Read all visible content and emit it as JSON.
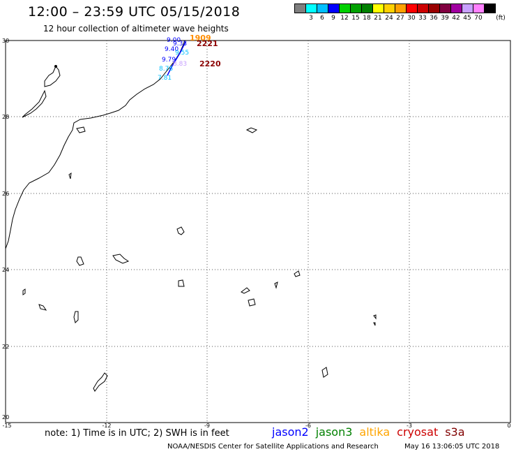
{
  "title": "12:00 – 23:59 UTC 05/15/2018",
  "subtitle": "12 hour collection of altimeter wave heights",
  "legend": {
    "colors": [
      "#7f7f7f",
      "#00ffff",
      "#00bfff",
      "#0000ff",
      "#00d000",
      "#00a000",
      "#008000",
      "#ffff00",
      "#ffd000",
      "#ffa000",
      "#ff0000",
      "#cc0000",
      "#990000",
      "#800040",
      "#a000a0",
      "#c8a0ff",
      "#ff80ff",
      "#000000"
    ],
    "labels": [
      "3",
      "6",
      "9",
      "12",
      "15",
      "18",
      "21",
      "24",
      "27",
      "30",
      "33",
      "36",
      "39",
      "42",
      "45",
      "70"
    ],
    "unit": "(ft)"
  },
  "map": {
    "lat_ticks": [
      "30",
      "28",
      "26",
      "24",
      "22",
      "20"
    ],
    "lon_ticks": [
      "-15",
      "-12",
      "-9",
      "-6",
      "-3",
      "0"
    ]
  },
  "wave_labels": [
    {
      "text": "9.00",
      "color": "#0000ff"
    },
    {
      "text": "9.33",
      "color": "#0000ff"
    },
    {
      "text": "9.40",
      "color": "#0000ff"
    },
    {
      "text": "9.55",
      "color": "#00bfff"
    },
    {
      "text": "9.79",
      "color": "#0000ff"
    },
    {
      "text": "8.83",
      "color": "#c8a0ff"
    },
    {
      "text": "8.76",
      "color": "#00bfff"
    },
    {
      "text": "7.81",
      "color": "#00bfff"
    }
  ],
  "pass_labels": [
    {
      "text": "1909",
      "color": "#ff8c00"
    },
    {
      "text": "2221",
      "color": "#8b0000"
    },
    {
      "text": "2220",
      "color": "#8b0000"
    }
  ],
  "footer": {
    "note": "note:  1) Time is in UTC;  2) SWH is in feet",
    "satellites": [
      {
        "name": "jason2",
        "color": "#0000ff"
      },
      {
        "name": "jason3",
        "color": "#008000"
      },
      {
        "name": "altika",
        "color": "#ffa500"
      },
      {
        "name": "cryosat",
        "color": "#cc0000"
      },
      {
        "name": "s3a",
        "color": "#800000"
      }
    ],
    "credit": "NOAA/NESDIS Center for Satellite Applications and Research",
    "timestamp": "May 16 13:06:05 UTC 2018"
  }
}
